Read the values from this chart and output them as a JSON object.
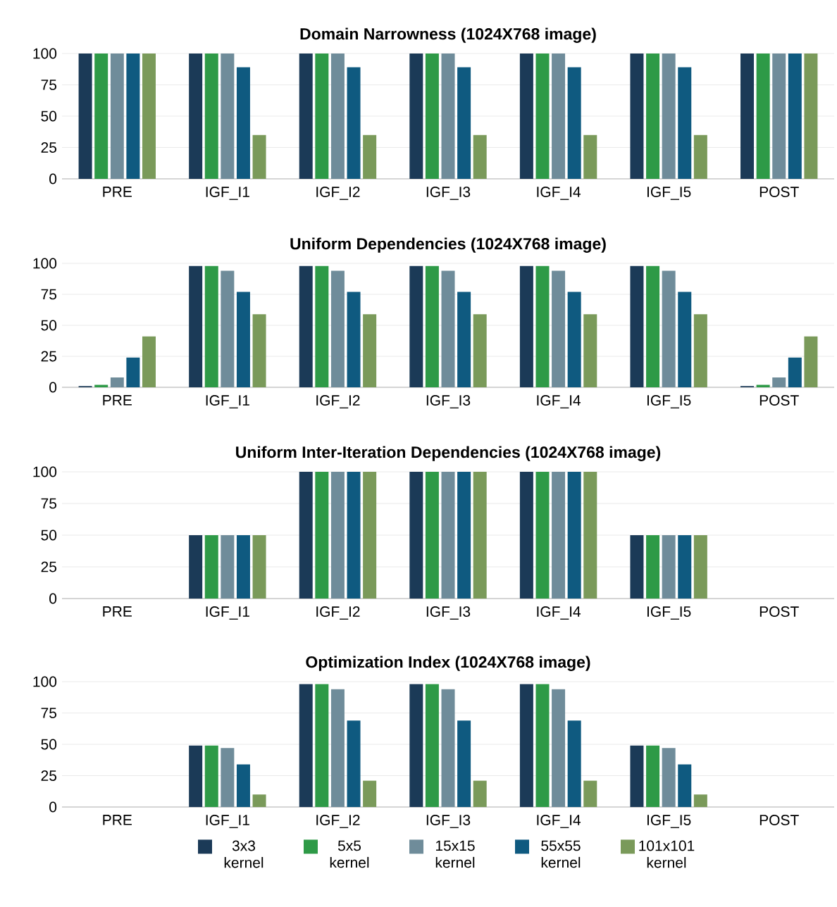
{
  "chart_data": [
    {
      "type": "bar",
      "title": "Domain Narrowness (1024X768 image)",
      "categories": [
        "PRE",
        "IGF_I1",
        "IGF_I2",
        "IGF_I3",
        "IGF_I4",
        "IGF_I5",
        "POST"
      ],
      "ylim": [
        0,
        100
      ],
      "yticks": [
        0,
        25,
        50,
        75,
        100
      ],
      "grid": "y",
      "series": [
        {
          "color": "#1b3a57",
          "values": [
            100,
            100,
            100,
            100,
            100,
            100,
            100
          ]
        },
        {
          "color": "#2e9a47",
          "values": [
            100,
            100,
            100,
            100,
            100,
            100,
            100
          ]
        },
        {
          "color": "#6f8c9a",
          "values": [
            100,
            100,
            100,
            100,
            100,
            100,
            100
          ]
        },
        {
          "color": "#0f5a80",
          "values": [
            100,
            89,
            89,
            89,
            89,
            89,
            100
          ]
        },
        {
          "color": "#7a9a5a",
          "values": [
            100,
            35,
            35,
            35,
            35,
            35,
            100
          ]
        }
      ]
    },
    {
      "type": "bar",
      "title": "Uniform Dependencies (1024X768 image)",
      "categories": [
        "PRE",
        "IGF_I1",
        "IGF_I2",
        "IGF_I3",
        "IGF_I4",
        "IGF_I5",
        "POST"
      ],
      "ylim": [
        0,
        100
      ],
      "yticks": [
        0,
        25,
        50,
        75,
        100
      ],
      "grid": "y",
      "series": [
        {
          "color": "#1b3a57",
          "values": [
            1,
            98,
            98,
            98,
            98,
            98,
            1
          ]
        },
        {
          "color": "#2e9a47",
          "values": [
            2,
            98,
            98,
            98,
            98,
            98,
            2
          ]
        },
        {
          "color": "#6f8c9a",
          "values": [
            8,
            94,
            94,
            94,
            94,
            94,
            8
          ]
        },
        {
          "color": "#0f5a80",
          "values": [
            24,
            77,
            77,
            77,
            77,
            77,
            24
          ]
        },
        {
          "color": "#7a9a5a",
          "values": [
            41,
            59,
            59,
            59,
            59,
            59,
            41
          ]
        }
      ]
    },
    {
      "type": "bar",
      "title": "Uniform Inter-Iteration Dependencies (1024X768 image)",
      "categories": [
        "PRE",
        "IGF_I1",
        "IGF_I2",
        "IGF_I3",
        "IGF_I4",
        "IGF_I5",
        "POST"
      ],
      "ylim": [
        0,
        100
      ],
      "yticks": [
        0,
        25,
        50,
        75,
        100
      ],
      "grid": "y",
      "series": [
        {
          "color": "#1b3a57",
          "values": [
            0,
            50,
            100,
            100,
            100,
            50,
            0
          ]
        },
        {
          "color": "#2e9a47",
          "values": [
            0,
            50,
            100,
            100,
            100,
            50,
            0
          ]
        },
        {
          "color": "#6f8c9a",
          "values": [
            0,
            50,
            100,
            100,
            100,
            50,
            0
          ]
        },
        {
          "color": "#0f5a80",
          "values": [
            0,
            50,
            100,
            100,
            100,
            50,
            0
          ]
        },
        {
          "color": "#7a9a5a",
          "values": [
            0,
            50,
            100,
            100,
            100,
            50,
            0
          ]
        }
      ]
    },
    {
      "type": "bar",
      "title": "Optimization Index (1024X768 image)",
      "categories": [
        "PRE",
        "IGF_I1",
        "IGF_I2",
        "IGF_I3",
        "IGF_I4",
        "IGF_I5",
        "POST"
      ],
      "ylim": [
        0,
        100
      ],
      "yticks": [
        0,
        25,
        50,
        75,
        100
      ],
      "grid": "y",
      "legend": "bottom",
      "series": [
        {
          "name": "3x3 kernel",
          "color": "#1b3a57",
          "values": [
            0,
            49,
            98,
            98,
            98,
            49,
            0
          ]
        },
        {
          "name": "5x5 kernel",
          "color": "#2e9a47",
          "values": [
            0,
            49,
            98,
            98,
            98,
            49,
            0
          ]
        },
        {
          "name": "15x15 kernel",
          "color": "#6f8c9a",
          "values": [
            0,
            47,
            94,
            94,
            94,
            47,
            0
          ]
        },
        {
          "name": "55x55 kernel",
          "color": "#0f5a80",
          "values": [
            0,
            34,
            69,
            69,
            69,
            34,
            0
          ]
        },
        {
          "name": "101x101 kernel",
          "color": "#7a9a5a",
          "values": [
            0,
            10,
            21,
            21,
            21,
            10,
            0
          ]
        }
      ]
    }
  ]
}
